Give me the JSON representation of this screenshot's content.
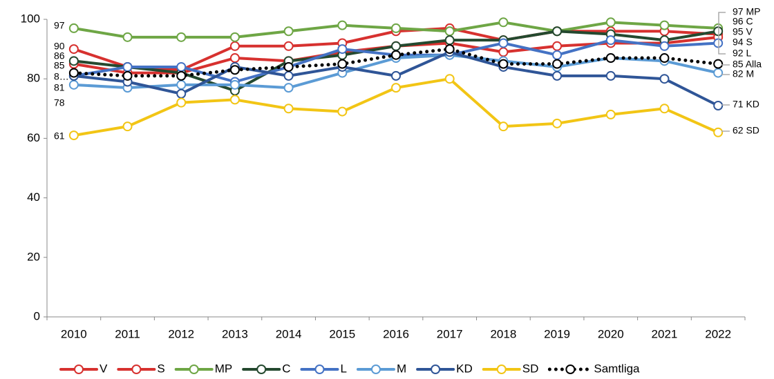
{
  "chart_data": {
    "type": "line",
    "categories": [
      "2010",
      "2011",
      "2012",
      "2013",
      "2014",
      "2015",
      "2016",
      "2017",
      "2018",
      "2019",
      "2020",
      "2021",
      "2022"
    ],
    "ylim": [
      0,
      100
    ],
    "yticks": [
      0,
      20,
      40,
      60,
      80,
      100
    ],
    "series": [
      {
        "name": "V",
        "color": "#d7312f",
        "values": [
          90,
          84,
          83,
          91,
          91,
          92,
          96,
          97,
          93,
          96,
          96,
          96,
          95
        ]
      },
      {
        "name": "S",
        "color": "#d7312f",
        "values": [
          85,
          82,
          82,
          87,
          86,
          89,
          91,
          92,
          89,
          91,
          92,
          92,
          94
        ]
      },
      {
        "name": "MP",
        "color": "#6ea645",
        "values": [
          97,
          94,
          94,
          94,
          96,
          98,
          97,
          96,
          99,
          96,
          99,
          98,
          97
        ]
      },
      {
        "name": "C",
        "color": "#24492f",
        "values": [
          86,
          84,
          82,
          76,
          86,
          88,
          91,
          93,
          93,
          96,
          95,
          93,
          96
        ]
      },
      {
        "name": "L",
        "color": "#4472c4",
        "values": [
          81,
          84,
          84,
          79,
          84,
          90,
          88,
          88,
          92,
          88,
          93,
          91,
          92
        ]
      },
      {
        "name": "M",
        "color": "#5b9bd5",
        "values": [
          78,
          77,
          78,
          78,
          77,
          82,
          87,
          88,
          86,
          84,
          87,
          86,
          82
        ]
      },
      {
        "name": "KD",
        "color": "#2f5597",
        "values": [
          81,
          79,
          75,
          84,
          81,
          84,
          81,
          89,
          84,
          81,
          81,
          80,
          71
        ]
      },
      {
        "name": "SD",
        "color": "#f2c515",
        "values": [
          61,
          64,
          72,
          73,
          70,
          69,
          77,
          80,
          64,
          65,
          68,
          70,
          62
        ]
      },
      {
        "name": "Samtliga",
        "color": "#000000",
        "dotted": true,
        "values": [
          82,
          81,
          81,
          83,
          84,
          85,
          88,
          90,
          85,
          85,
          87,
          87,
          85
        ]
      }
    ],
    "start_labels": [
      "97",
      "90",
      "86",
      "85",
      "8…",
      "81",
      "78",
      "61"
    ],
    "end_labels": [
      "97 MP",
      "96 C",
      "95 V",
      "94 S",
      "92 L",
      "85 Alla",
      "82 M",
      "71 KD",
      "62 SD"
    ]
  }
}
